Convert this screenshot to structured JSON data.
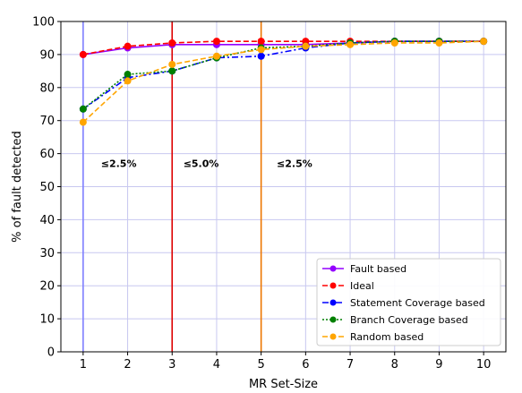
{
  "chart_data": {
    "type": "line",
    "xlabel": "MR Set-Size",
    "ylabel": "% of fault detected",
    "xlim": [
      0.5,
      10.5
    ],
    "ylim": [
      0,
      100
    ],
    "xticks": [
      1,
      2,
      3,
      4,
      5,
      6,
      7,
      8,
      9,
      10
    ],
    "yticks": [
      0,
      10,
      20,
      30,
      40,
      50,
      60,
      70,
      80,
      90,
      100
    ],
    "grid": true,
    "legend_position": "lower-right",
    "x": [
      1,
      2,
      3,
      4,
      5,
      6,
      7,
      8,
      9,
      10
    ],
    "series": [
      {
        "name": "Fault based",
        "color": "#9400ff",
        "dash": "solid",
        "values": [
          90,
          92,
          93,
          93,
          93,
          93,
          93.5,
          94,
          94,
          94
        ]
      },
      {
        "name": "Ideal",
        "color": "#ff0000",
        "dash": "dashed",
        "values": [
          90,
          92.5,
          93.5,
          94,
          94,
          94,
          94,
          94,
          94,
          94
        ]
      },
      {
        "name": "Statement Coverage based",
        "color": "#0000ff",
        "dash": "dashdot",
        "values": [
          73.5,
          83,
          85,
          89,
          89.5,
          92,
          93.5,
          94,
          94,
          94
        ]
      },
      {
        "name": "Branch Coverage based",
        "color": "#008000",
        "dash": "dotted",
        "values": [
          73.5,
          84,
          85,
          89,
          92,
          92.5,
          93.5,
          94,
          94,
          94
        ]
      },
      {
        "name": "Random based",
        "color": "#ffa500",
        "dash": "dashed",
        "values": [
          69.5,
          82,
          87,
          89.5,
          91.5,
          92.5,
          93,
          93.5,
          93.5,
          94
        ]
      }
    ],
    "vertical_lines": [
      {
        "x": 1,
        "color": "#7f7fff"
      },
      {
        "x": 3,
        "color": "#dd0000"
      },
      {
        "x": 5,
        "color": "#ee7700"
      }
    ],
    "annotations": [
      {
        "text": "≤2.5%",
        "x": 1.8,
        "y": 56
      },
      {
        "text": "≤5.0%",
        "x": 3.65,
        "y": 56
      },
      {
        "text": "≤2.5%",
        "x": 5.75,
        "y": 56
      }
    ]
  }
}
